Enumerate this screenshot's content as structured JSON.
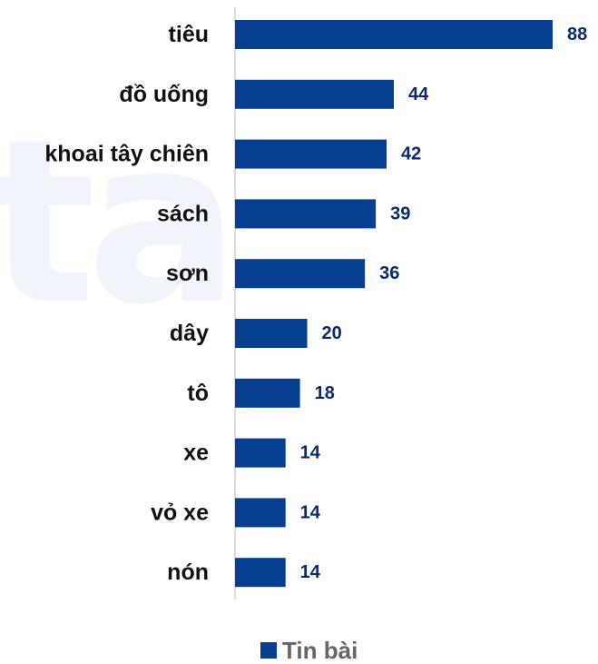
{
  "watermark": "ta",
  "chart_data": {
    "type": "bar",
    "orientation": "horizontal",
    "categories": [
      "tiêu",
      "đồ uống",
      "khoai tây chiên",
      "sách",
      "sơn",
      "dây",
      "tô",
      "xe",
      "vỏ xe",
      "nón"
    ],
    "series": [
      {
        "name": "Tin bài",
        "values": [
          88,
          44,
          42,
          39,
          36,
          20,
          18,
          14,
          14,
          14
        ]
      }
    ],
    "xlim": [
      0,
      88
    ],
    "grid": false,
    "legend_position": "bottom",
    "data_labels": true
  },
  "colors": {
    "bar": "#063f8f",
    "value_label": "#0a2a6b",
    "category_label": "#111111",
    "axis_line": "#d0d0d0",
    "legend_text": "#666666",
    "watermark": "#f1f4fb"
  }
}
